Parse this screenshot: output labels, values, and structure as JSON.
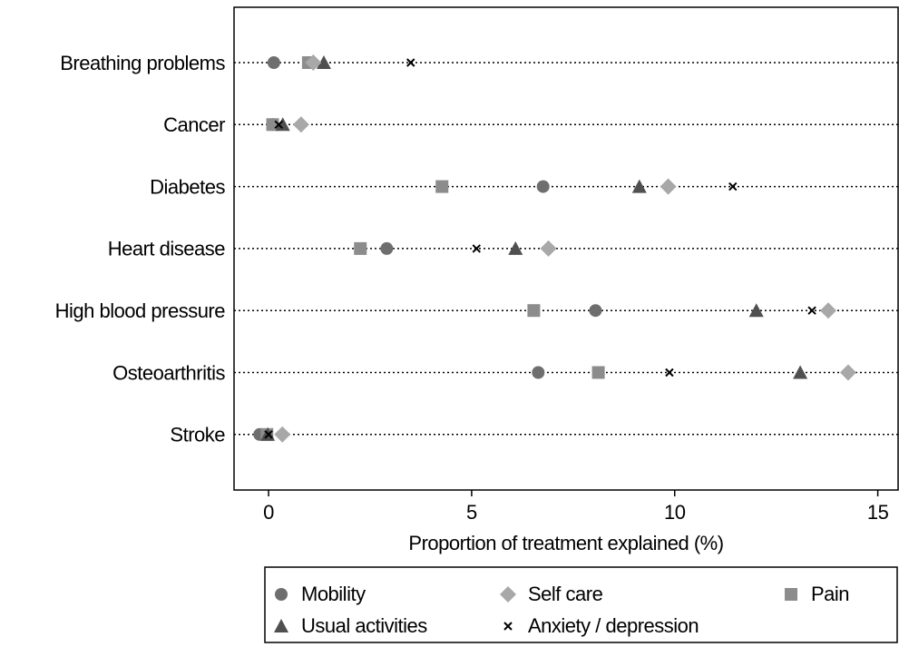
{
  "chart_data": {
    "type": "dot",
    "xlabel": "Proportion of treatment explained (%)",
    "categories": [
      "Breathing problems",
      "Cancer",
      "Diabetes",
      "Heart disease",
      "High blood pressure",
      "Osteoarthritis",
      "Stroke"
    ],
    "series": [
      {
        "name": "Mobility",
        "color": "#6e6e6e",
        "marker": "circle",
        "values": [
          0.13,
          0.1,
          6.76,
          2.91,
          8.05,
          6.64,
          -0.22
        ]
      },
      {
        "name": "Pain",
        "color": "#8c8c8c",
        "marker": "square",
        "values": [
          0.98,
          0.1,
          4.27,
          2.26,
          6.53,
          8.12,
          -0.04
        ]
      },
      {
        "name": "Usual activities",
        "color": "#505050",
        "marker": "triangle",
        "values": [
          1.36,
          0.35,
          9.13,
          6.08,
          12.01,
          13.09,
          -0.02
        ]
      },
      {
        "name": "Self care",
        "color": "#a8a8a8",
        "marker": "diamond",
        "values": [
          1.1,
          0.8,
          9.84,
          6.89,
          13.78,
          14.27,
          0.34
        ]
      },
      {
        "name": "Anxiety / depression",
        "color": "#000000",
        "marker": "x",
        "values": [
          3.5,
          0.25,
          11.43,
          5.12,
          13.38,
          9.87,
          0.0
        ]
      }
    ],
    "xlim": [
      -0.85,
      15.5
    ],
    "xticks": [
      0,
      5,
      10,
      15
    ]
  }
}
